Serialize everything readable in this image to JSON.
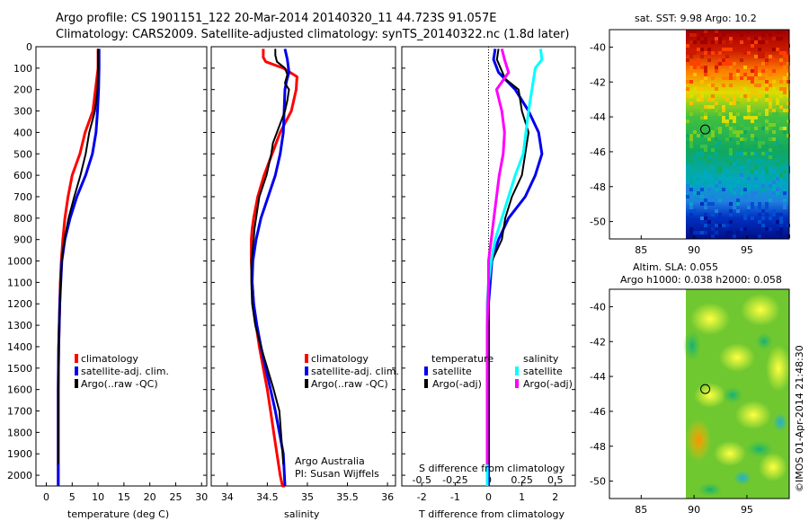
{
  "header": {
    "line1": "Argo profile: CS 1901151_122 20-Mar-2014 20140320_11 44.723S 91.057E",
    "line2": "Climatology: CARS2009. Satellite-adjusted climatology: synTS_20140322.nc (1.8d later)"
  },
  "colors": {
    "red": "#ff0000",
    "blue": "#0000ee",
    "black": "#000000",
    "cyan": "#00ffff",
    "magenta": "#ff00ff"
  },
  "chart_data": [
    {
      "type": "line",
      "id": "temperature",
      "xlabel": "temperature (deg C)",
      "xlim": [
        -2,
        31
      ],
      "ylim": [
        0,
        2050
      ],
      "yticks": [
        0,
        100,
        200,
        300,
        400,
        500,
        600,
        700,
        800,
        900,
        1000,
        1100,
        1200,
        1300,
        1400,
        1500,
        1600,
        1700,
        1800,
        1900,
        2000
      ],
      "xticks": [
        0,
        5,
        10,
        15,
        20,
        25,
        30
      ],
      "legend": [
        "climatology",
        "satellite-adj. clim.",
        "Argo(..raw -QC)"
      ],
      "series": [
        {
          "name": "climatology",
          "color": "red",
          "x": [
            10.0,
            10.0,
            9.5,
            9.0,
            7.5,
            6.5,
            5.0,
            4.2,
            3.6,
            3.2,
            2.9,
            2.7,
            2.6,
            2.5,
            2.4,
            2.35,
            2.3,
            2.3,
            2.3,
            2.3,
            2.3
          ],
          "y": [
            10,
            100,
            200,
            300,
            400,
            500,
            600,
            700,
            800,
            900,
            1000,
            1100,
            1200,
            1300,
            1400,
            1500,
            1600,
            1700,
            1800,
            1900,
            2050
          ]
        },
        {
          "name": "satellite-adj. clim.",
          "color": "blue",
          "x": [
            10.2,
            10.2,
            10.1,
            9.9,
            9.6,
            8.9,
            7.6,
            5.9,
            4.6,
            3.6,
            3.0,
            2.8,
            2.6,
            2.5,
            2.4,
            2.35,
            2.3,
            2.3,
            2.3,
            2.3,
            2.3
          ],
          "y": [
            10,
            100,
            200,
            300,
            400,
            500,
            600,
            700,
            800,
            900,
            1000,
            1100,
            1200,
            1300,
            1400,
            1500,
            1600,
            1700,
            1800,
            1900,
            2050
          ]
        },
        {
          "name": "Argo(..raw -QC)",
          "color": "black",
          "x": [
            10.0,
            10.0,
            9.9,
            9.4,
            8.3,
            7.6,
            6.6,
            5.4,
            4.3,
            3.5,
            3.0,
            2.8,
            2.6,
            2.5,
            2.4,
            2.35,
            2.3,
            2.3,
            2.3,
            2.3
          ],
          "y": [
            10,
            100,
            200,
            300,
            400,
            500,
            600,
            700,
            800,
            900,
            1000,
            1100,
            1200,
            1300,
            1400,
            1500,
            1600,
            1700,
            1800,
            1950
          ]
        }
      ]
    },
    {
      "type": "line",
      "id": "salinity",
      "xlabel": "salinity",
      "xlim": [
        33.8,
        36.1
      ],
      "ylim": [
        0,
        2050
      ],
      "xticks": [
        34,
        34.5,
        35,
        35.5,
        36
      ],
      "xticklabels": [
        "34",
        "34.5",
        "35",
        "35.5",
        "36"
      ],
      "legend": [
        "climatology",
        "satellite-adj. clim.",
        "Argo(..raw -QC)"
      ],
      "annotation": [
        "Argo Australia",
        "PI: Susan Wijffels"
      ],
      "series": [
        {
          "name": "climatology",
          "color": "red",
          "x": [
            34.45,
            34.45,
            34.48,
            34.7,
            34.87,
            34.86,
            34.8,
            34.66,
            34.56,
            34.46,
            34.38,
            34.33,
            34.31,
            34.3,
            34.3,
            34.3,
            34.31,
            34.33,
            34.36,
            34.4,
            34.45,
            34.5,
            34.54,
            34.58,
            34.62,
            34.66,
            34.69,
            34.72
          ],
          "y": [
            10,
            50,
            70,
            100,
            140,
            200,
            300,
            400,
            500,
            600,
            700,
            800,
            850,
            900,
            950,
            1000,
            1100,
            1200,
            1300,
            1400,
            1500,
            1600,
            1700,
            1800,
            1900,
            2000,
            2050,
            2050
          ]
        },
        {
          "name": "satellite-adj. clim.",
          "color": "blue",
          "x": [
            34.72,
            34.75,
            34.77,
            34.74,
            34.72,
            34.71,
            34.7,
            34.66,
            34.6,
            34.51,
            34.42,
            34.36,
            34.32,
            34.31,
            34.33,
            34.37,
            34.42,
            34.48,
            34.54,
            34.6,
            34.65,
            34.7,
            34.72
          ],
          "y": [
            10,
            60,
            120,
            160,
            200,
            300,
            400,
            500,
            600,
            700,
            800,
            900,
            1000,
            1100,
            1200,
            1300,
            1400,
            1500,
            1600,
            1700,
            1800,
            1900,
            2050
          ]
        },
        {
          "name": "Argo(..raw -QC)",
          "color": "black",
          "x": [
            34.6,
            34.6,
            34.62,
            34.72,
            34.75,
            34.72,
            34.77,
            34.75,
            34.72,
            34.62,
            34.57,
            34.55,
            34.49,
            34.4,
            34.36,
            34.34,
            34.33,
            34.3,
            34.3,
            34.31,
            34.35,
            34.42,
            34.5,
            34.58,
            34.65,
            34.7
          ],
          "y": [
            10,
            40,
            70,
            100,
            130,
            170,
            200,
            250,
            300,
            400,
            450,
            500,
            600,
            700,
            800,
            850,
            900,
            1000,
            1100,
            1200,
            1300,
            1400,
            1500,
            1600,
            1700,
            1950
          ]
        }
      ]
    },
    {
      "type": "line",
      "id": "difference",
      "xlabel": "T difference from climatology",
      "xlabel_top": "S difference from climatology",
      "xlim": [
        -2.6,
        2.6
      ],
      "ylim": [
        0,
        2050
      ],
      "xticks": [
        -2,
        -1,
        0,
        1,
        2
      ],
      "xticks_top": [
        -0.5,
        -0.25,
        0,
        0.25,
        0.5
      ],
      "legend_temperature_title": "temperature",
      "legend_salinity_title": "salinity",
      "legend": [
        "satellite",
        "Argo(-adj)",
        "satellite",
        "Argo(-adj)"
      ],
      "series": [
        {
          "name": "T satellite",
          "color": "blue",
          "x": [
            0.2,
            0.15,
            0.3,
            0.8,
            1.2,
            1.5,
            1.6,
            1.4,
            1.1,
            0.6,
            0.3,
            0.1,
            0.05,
            0.0,
            0.0,
            0.0,
            0.0,
            0.0
          ],
          "y": [
            10,
            60,
            120,
            200,
            300,
            400,
            500,
            600,
            700,
            800,
            900,
            1000,
            1100,
            1200,
            1400,
            1600,
            1800,
            2050
          ]
        },
        {
          "name": "T Argo(-adj)",
          "color": "black",
          "x": [
            0.3,
            0.25,
            0.5,
            0.9,
            1.0,
            1.2,
            1.1,
            1.0,
            0.7,
            0.5,
            0.4,
            0.1,
            0.0,
            0.0,
            0.0,
            0.0,
            0.0
          ],
          "y": [
            10,
            60,
            150,
            200,
            300,
            400,
            500,
            600,
            700,
            800,
            900,
            1000,
            1100,
            1300,
            1500,
            1800,
            1950
          ]
        },
        {
          "name": "S satellite",
          "color": "cyan",
          "x": [
            0.39,
            0.4,
            0.35,
            0.3,
            0.26,
            0.2,
            0.15,
            0.1,
            0.05,
            0.02,
            0.0,
            -0.01,
            -0.01,
            -0.01,
            -0.01,
            -0.01
          ],
          "y": [
            10,
            60,
            100,
            300,
            500,
            600,
            700,
            800,
            900,
            1000,
            1100,
            1200,
            1400,
            1600,
            1800,
            2050
          ]
        },
        {
          "name": "S Argo(-adj)",
          "color": "magenta",
          "x": [
            0.1,
            0.12,
            0.15,
            0.06,
            0.1,
            0.12,
            0.11,
            0.08,
            0.06,
            0.04,
            0.02,
            0.0,
            0.0,
            -0.01,
            -0.01,
            -0.01
          ],
          "y": [
            10,
            60,
            120,
            200,
            300,
            400,
            500,
            600,
            700,
            800,
            900,
            1000,
            1100,
            1300,
            1600,
            1950
          ]
        }
      ]
    },
    {
      "type": "heatmap",
      "id": "sst-map",
      "title": "sat. SST: 9.98 Argo: 10.2",
      "xticks": [
        85,
        90,
        95
      ],
      "yticks": [
        -40,
        -42,
        -44,
        -46,
        -48,
        -50
      ],
      "xlim": [
        82,
        99
      ],
      "ylim": [
        -51,
        -39
      ],
      "marker": {
        "lon": 91.057,
        "lat": -44.723
      }
    },
    {
      "type": "heatmap",
      "id": "sla-map",
      "title_line1": "Altim. SLA: 0.055",
      "title_line2": "Argo h1000: 0.038 h2000: 0.058",
      "xticks": [
        85,
        90,
        95
      ],
      "yticks": [
        -40,
        -42,
        -44,
        -46,
        -48,
        -50
      ],
      "xlim": [
        82,
        99
      ],
      "ylim": [
        -51,
        -39
      ],
      "marker": {
        "lon": 91.057,
        "lat": -44.723
      }
    }
  ],
  "footer": {
    "imos_label": "©IMOS 01-Apr-2014 21:48:30"
  }
}
